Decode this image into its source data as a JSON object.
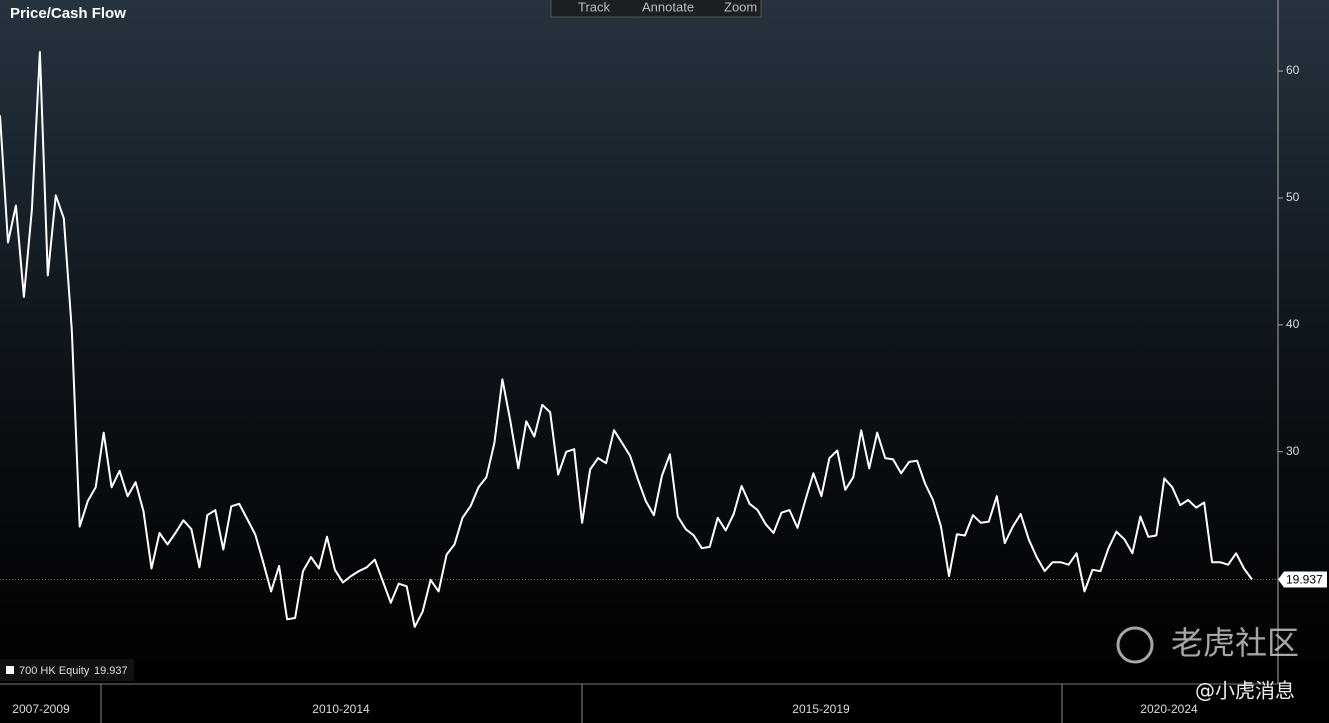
{
  "chart_data": {
    "type": "line",
    "title": "Price/Cash Flow",
    "periods": [
      "2007-2009",
      "2010-2014",
      "2015-2019",
      "2020-2024"
    ],
    "series": [
      {
        "name": "700 HK Equity",
        "color": "#ffffff",
        "values": [
          56.5,
          46.5,
          49.4,
          42.2,
          49.1,
          61.5,
          43.9,
          50.2,
          48.4,
          39.6,
          24.1,
          26.1,
          27.2,
          31.5,
          27.2,
          28.5,
          26.5,
          27.6,
          25.3,
          20.8,
          23.6,
          22.7,
          23.6,
          24.6,
          23.9,
          20.9,
          25.0,
          25.4,
          22.3,
          25.7,
          25.9,
          24.7,
          23.5,
          21.3,
          19.0,
          21.0,
          16.8,
          16.9,
          20.6,
          21.7,
          20.8,
          23.3,
          20.7,
          19.7,
          20.2,
          20.6,
          20.9,
          21.5,
          19.8,
          18.1,
          19.6,
          19.4,
          16.2,
          17.4,
          19.9,
          19.0,
          21.9,
          22.7,
          24.8,
          25.7,
          27.2,
          28.0,
          30.7,
          35.7,
          32.4,
          28.7,
          32.4,
          31.2,
          33.7,
          33.1,
          28.2,
          30.0,
          30.2,
          24.4,
          28.6,
          29.5,
          29.1,
          31.7,
          30.7,
          29.7,
          27.8,
          26.1,
          25.0,
          28.1,
          29.8,
          24.9,
          23.9,
          23.4,
          22.4,
          22.5,
          24.8,
          23.8,
          25.1,
          27.3,
          25.9,
          25.4,
          24.3,
          23.6,
          25.2,
          25.4,
          24.0,
          26.2,
          28.3,
          26.5,
          29.5,
          30.1,
          27.0,
          28.0,
          31.7,
          28.7,
          31.5,
          29.5,
          29.4,
          28.3,
          29.2,
          29.3,
          27.5,
          26.2,
          24.1,
          20.2,
          23.5,
          23.4,
          25.0,
          24.4,
          24.5,
          26.5,
          22.8,
          24.1,
          25.1,
          23.1,
          21.7,
          20.6,
          21.3,
          21.3,
          21.1,
          22.0,
          19.0,
          20.7,
          20.6,
          22.4,
          23.7,
          23.1,
          22.0,
          24.9,
          23.3,
          23.4,
          27.9,
          27.2,
          25.8,
          26.2,
          25.6,
          26.0,
          21.3,
          21.3,
          21.1,
          22.0,
          20.8,
          19.937
        ]
      }
    ],
    "ylim": [
      11.7,
      65.6
    ],
    "yticks": [
      30,
      40,
      50,
      60
    ],
    "grid": true,
    "legend": "bottom-left"
  },
  "toolbar": [
    "Track",
    "Annotate",
    "Zoom"
  ],
  "watermark": {
    "brand": "老虎社区",
    "handle": "@小虎消息"
  }
}
